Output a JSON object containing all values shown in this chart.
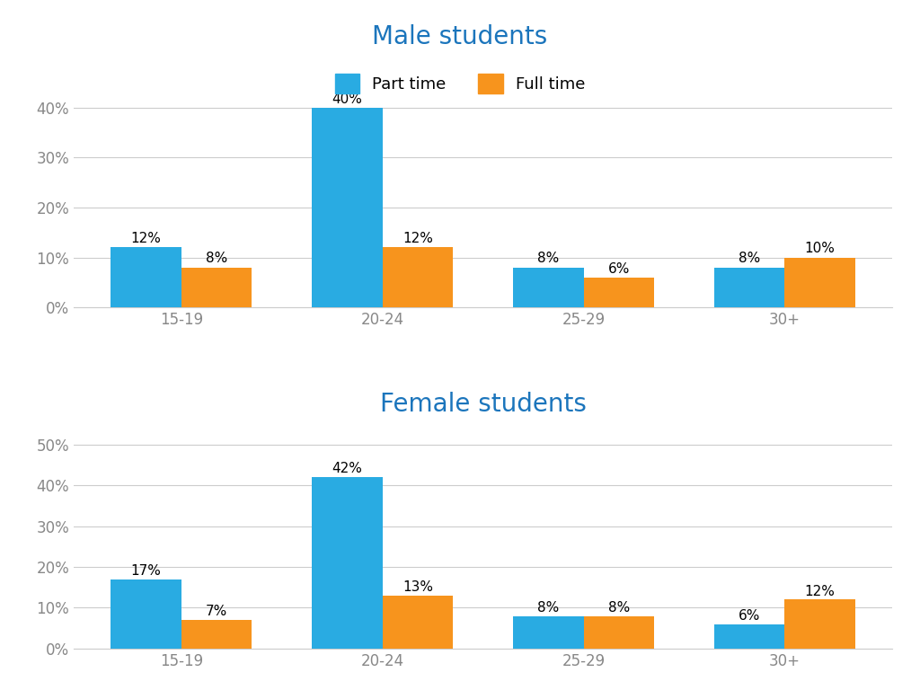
{
  "male": {
    "title": "Male students",
    "categories": [
      "15-19",
      "20-24",
      "25-29",
      "30+"
    ],
    "part_time": [
      12,
      40,
      8,
      8
    ],
    "full_time": [
      8,
      12,
      6,
      10
    ],
    "ylim": [
      0,
      45
    ],
    "yticks": [
      0,
      10,
      20,
      30,
      40
    ]
  },
  "female": {
    "title": "Female students",
    "categories": [
      "15-19",
      "20-24",
      "25-29",
      "30+"
    ],
    "part_time": [
      17,
      42,
      8,
      6
    ],
    "full_time": [
      7,
      13,
      8,
      12
    ],
    "ylim": [
      0,
      55
    ],
    "yticks": [
      0,
      10,
      20,
      30,
      40,
      50
    ]
  },
  "colors": {
    "part_time": "#29ABE2",
    "full_time": "#F7941D",
    "title": "#1B75BC",
    "axis_text": "#888888",
    "grid": "#CCCCCC",
    "background": "#FFFFFF"
  },
  "legend": {
    "part_time_label": "Part time",
    "full_time_label": "Full time"
  },
  "bar_width": 0.35,
  "title_fontsize": 20,
  "label_fontsize": 13,
  "tick_fontsize": 12,
  "value_fontsize": 11
}
